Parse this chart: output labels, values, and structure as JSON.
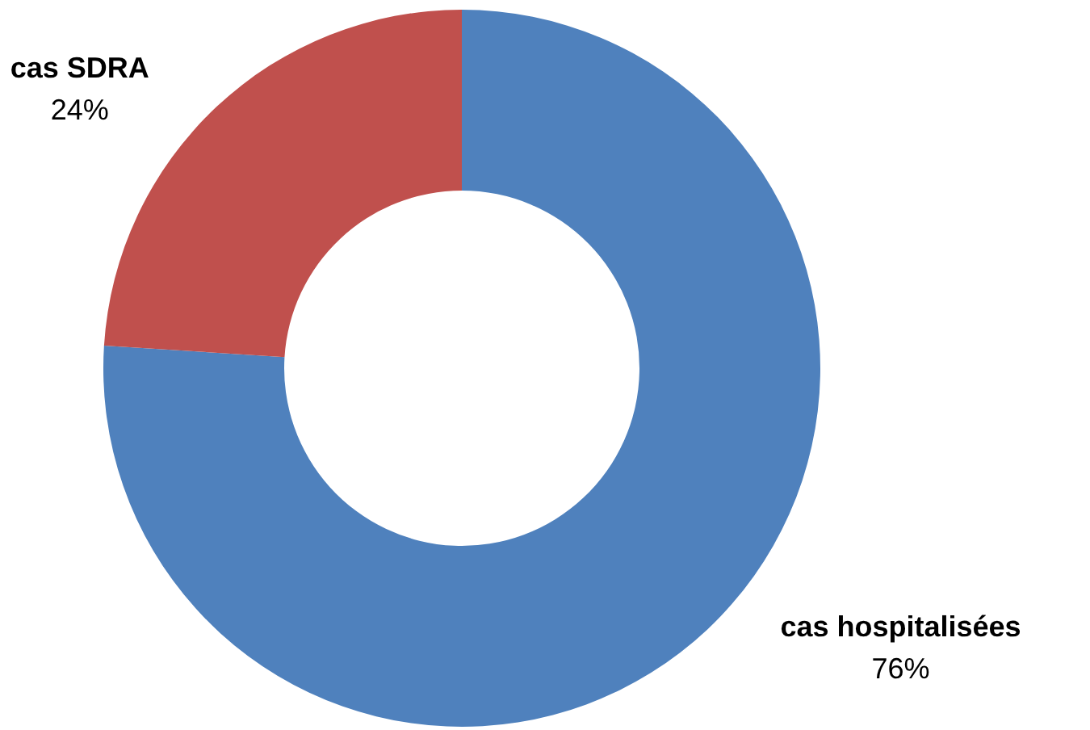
{
  "chart_data": {
    "type": "donut",
    "categories": [
      "cas hospitalisées",
      "cas SDRA"
    ],
    "values": [
      76,
      24
    ],
    "colors": [
      "#4f81bd",
      "#c0504d"
    ],
    "value_labels": [
      "76%",
      "24%"
    ],
    "legend": false
  }
}
